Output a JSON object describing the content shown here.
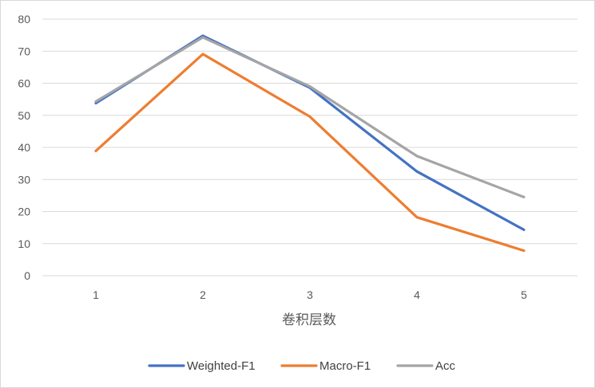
{
  "chart_data": {
    "type": "line",
    "title": "",
    "xlabel": "卷积层数",
    "ylabel": "",
    "categories": [
      "1",
      "2",
      "3",
      "4",
      "5"
    ],
    "ylim": [
      0,
      80
    ],
    "yticks": [
      0,
      10,
      20,
      30,
      40,
      50,
      60,
      70,
      80
    ],
    "grid": "horizontal",
    "legend_position": "bottom",
    "series": [
      {
        "name": "Weighted-F1",
        "color": "#4472c4",
        "values": [
          53.8,
          74.8,
          58.6,
          32.5,
          14.3
        ]
      },
      {
        "name": "Macro-F1",
        "color": "#ed7d31",
        "values": [
          38.9,
          69.1,
          49.6,
          18.2,
          7.8
        ]
      },
      {
        "name": "Acc",
        "color": "#a5a5a5",
        "values": [
          54.3,
          74.3,
          59.0,
          37.3,
          24.5
        ]
      }
    ]
  }
}
